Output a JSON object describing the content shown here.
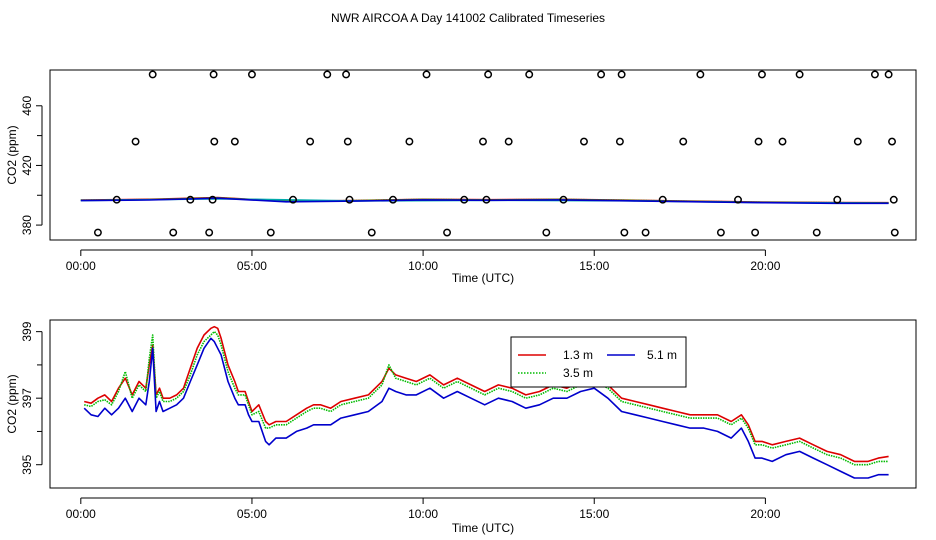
{
  "page": {
    "title": "NWR AIRCOA A  Day 141002  Calibrated Timeseries"
  },
  "colors": {
    "axis": "#000000",
    "red": "#dd0000",
    "green": "#00bb00",
    "blue": "#0000cc",
    "cyan": "#00aaaa"
  },
  "chart_data": [
    {
      "type": "scatter",
      "title": "",
      "xlabel": "Time (UTC)",
      "ylabel": "CO2 (ppm)",
      "xlim": [
        -0.9,
        24.4
      ],
      "ylim": [
        370,
        484
      ],
      "x_ticks": [
        0,
        5,
        10,
        15,
        20
      ],
      "x_tick_labels": [
        "00:00",
        "05:00",
        "10:00",
        "15:00",
        "20:00"
      ],
      "y_ticks": [
        380,
        420,
        460
      ],
      "y_tick_labels": [
        "380",
        "420",
        "460"
      ],
      "grid": false,
      "series": [
        {
          "color": "red",
          "x": [
            0.0,
            2.0,
            4.0,
            6.0,
            8.0,
            10.0,
            12.0,
            14.0,
            16.0,
            18.0,
            20.0,
            22.0,
            23.6
          ],
          "y": [
            396.8,
            397.3,
            398.5,
            396.0,
            396.5,
            397.3,
            397.0,
            397.3,
            396.7,
            396.0,
            395.4,
            395.1,
            395.0
          ]
        },
        {
          "color": "green",
          "x": [
            0.0,
            2.0,
            4.0,
            6.0,
            8.0,
            10.0,
            12.0,
            14.0,
            16.0,
            18.0,
            20.0,
            22.0,
            23.6
          ],
          "y": [
            396.7,
            397.1,
            398.3,
            395.9,
            396.4,
            397.2,
            396.9,
            397.2,
            396.6,
            395.9,
            395.3,
            395.0,
            394.9
          ]
        },
        {
          "color": "cyan",
          "x": [
            0.0,
            4.0,
            8.0,
            12.0,
            16.0,
            20.0,
            23.6
          ],
          "y": [
            396.4,
            397.6,
            396.2,
            396.6,
            396.3,
            395.1,
            394.7
          ]
        },
        {
          "color": "blue",
          "x": [
            0.0,
            2.0,
            4.0,
            6.0,
            8.0,
            10.0,
            12.0,
            14.0,
            16.0,
            18.0,
            20.0,
            22.0,
            23.6
          ],
          "y": [
            396.4,
            396.8,
            398.0,
            395.6,
            396.1,
            396.9,
            396.6,
            396.9,
            396.3,
            395.6,
            395.0,
            394.6,
            394.6
          ]
        }
      ],
      "markers_x": [
        0.5,
        1.05,
        1.6,
        2.1,
        2.7,
        3.2,
        3.75,
        3.85,
        3.9,
        3.88,
        4.5,
        5.0,
        5.55,
        6.2,
        6.7,
        7.2,
        7.75,
        7.8,
        7.85,
        8.5,
        9.6,
        9.12,
        10.1,
        10.7,
        11.2,
        11.75,
        11.85,
        11.9,
        12.5,
        13.1,
        13.6,
        14.1,
        14.7,
        15.2,
        15.75,
        15.8,
        15.88,
        16.5,
        17.0,
        17.6,
        18.1,
        18.7,
        19.2,
        19.7,
        19.8,
        19.9,
        20.5,
        21.0,
        21.5,
        22.1,
        22.7,
        23.2,
        23.6,
        23.7,
        23.75,
        23.78
      ],
      "markers_y": [
        375,
        397,
        436,
        481,
        375,
        397,
        375,
        397,
        436,
        481,
        436,
        481,
        375,
        397,
        436,
        481,
        481,
        436,
        397,
        375,
        436,
        397,
        481,
        375,
        397,
        436,
        397,
        481,
        436,
        481,
        375,
        397,
        436,
        481,
        436,
        481,
        375,
        375,
        397,
        436,
        481,
        375,
        397,
        375,
        436,
        481,
        436,
        481,
        375,
        397,
        436,
        481,
        481,
        436,
        397,
        375
      ]
    },
    {
      "type": "line",
      "title": "",
      "xlabel": "Time (UTC)",
      "ylabel": "CO2 (ppm)",
      "xlim": [
        -0.9,
        24.4
      ],
      "ylim": [
        394.3,
        399.35
      ],
      "x_ticks": [
        0,
        5,
        10,
        15,
        20
      ],
      "x_tick_labels": [
        "00:00",
        "05:00",
        "10:00",
        "15:00",
        "20:00"
      ],
      "y_ticks": [
        395,
        397,
        399
      ],
      "y_tick_labels": [
        "395",
        "397",
        "399"
      ],
      "grid": false,
      "legend_position": "top-center",
      "series": [
        {
          "name": "1.3 m",
          "color": "red",
          "x": [
            0.1,
            0.3,
            0.5,
            0.7,
            0.9,
            1.1,
            1.3,
            1.5,
            1.7,
            1.9,
            2.0,
            2.1,
            2.2,
            2.3,
            2.4,
            2.6,
            2.8,
            3.0,
            3.2,
            3.4,
            3.6,
            3.8,
            3.9,
            4.0,
            4.1,
            4.3,
            4.5,
            4.6,
            4.8,
            4.9,
            5.0,
            5.2,
            5.4,
            5.5,
            5.7,
            6.0,
            6.3,
            6.6,
            6.8,
            7.0,
            7.3,
            7.6,
            8.0,
            8.4,
            8.8,
            9.0,
            9.2,
            9.5,
            9.8,
            10.2,
            10.6,
            11.0,
            11.4,
            11.8,
            12.2,
            12.6,
            13.0,
            13.4,
            13.8,
            14.2,
            14.6,
            15.0,
            15.4,
            15.8,
            16.2,
            16.6,
            17.0,
            17.4,
            17.8,
            18.2,
            18.6,
            19.0,
            19.3,
            19.5,
            19.7,
            19.9,
            20.2,
            20.6,
            21.0,
            21.4,
            21.8,
            22.2,
            22.6,
            23.0,
            23.3,
            23.6
          ],
          "y": [
            396.9,
            396.85,
            397.0,
            397.1,
            396.9,
            397.3,
            397.6,
            397.1,
            397.5,
            397.3,
            398.0,
            398.6,
            397.1,
            397.3,
            397.0,
            397.0,
            397.1,
            397.3,
            397.9,
            398.5,
            398.9,
            399.1,
            399.15,
            399.1,
            398.8,
            398.0,
            397.5,
            397.2,
            397.2,
            396.9,
            396.6,
            396.8,
            396.3,
            396.2,
            396.3,
            396.3,
            396.5,
            396.7,
            396.8,
            396.8,
            396.7,
            396.9,
            397.0,
            397.1,
            397.5,
            397.9,
            397.7,
            397.6,
            397.5,
            397.7,
            397.4,
            397.6,
            397.4,
            397.2,
            397.4,
            397.3,
            397.1,
            397.2,
            397.4,
            397.3,
            397.5,
            397.6,
            397.4,
            397.0,
            396.9,
            396.8,
            396.7,
            396.6,
            396.5,
            396.5,
            396.5,
            396.3,
            396.5,
            396.2,
            395.7,
            395.7,
            395.6,
            395.7,
            395.8,
            395.6,
            395.4,
            395.3,
            395.1,
            395.1,
            395.2,
            395.25
          ]
        },
        {
          "name": "3.5 m",
          "color": "green",
          "x": [
            0.1,
            0.3,
            0.5,
            0.7,
            0.9,
            1.1,
            1.3,
            1.5,
            1.7,
            1.9,
            2.0,
            2.1,
            2.2,
            2.3,
            2.4,
            2.6,
            2.8,
            3.0,
            3.2,
            3.4,
            3.6,
            3.8,
            3.9,
            4.0,
            4.1,
            4.3,
            4.5,
            4.6,
            4.8,
            4.9,
            5.0,
            5.2,
            5.4,
            5.5,
            5.7,
            6.0,
            6.3,
            6.6,
            6.8,
            7.0,
            7.3,
            7.6,
            8.0,
            8.4,
            8.8,
            9.0,
            9.2,
            9.5,
            9.8,
            10.2,
            10.6,
            11.0,
            11.4,
            11.8,
            12.2,
            12.6,
            13.0,
            13.4,
            13.8,
            14.2,
            14.6,
            15.0,
            15.4,
            15.8,
            16.2,
            16.6,
            17.0,
            17.4,
            17.8,
            18.2,
            18.6,
            19.0,
            19.3,
            19.5,
            19.7,
            19.9,
            20.2,
            20.6,
            21.0,
            21.4,
            21.8,
            22.2,
            22.6,
            23.0,
            23.3,
            23.6
          ],
          "y": [
            396.8,
            396.75,
            396.9,
            396.95,
            396.8,
            397.2,
            397.8,
            397.0,
            397.4,
            397.2,
            398.2,
            398.9,
            397.0,
            397.2,
            396.9,
            396.9,
            397.0,
            397.2,
            397.7,
            398.3,
            398.7,
            398.9,
            399.0,
            398.9,
            398.6,
            397.8,
            397.3,
            397.1,
            397.1,
            396.8,
            396.5,
            396.6,
            396.1,
            396.1,
            396.2,
            396.2,
            396.4,
            396.6,
            396.7,
            396.7,
            396.6,
            396.8,
            396.9,
            397.0,
            397.4,
            398.0,
            397.6,
            397.5,
            397.4,
            397.6,
            397.3,
            397.5,
            397.3,
            397.1,
            397.3,
            397.2,
            397.0,
            397.1,
            397.3,
            397.2,
            397.4,
            397.5,
            397.3,
            396.9,
            396.8,
            396.7,
            396.6,
            396.5,
            396.4,
            396.4,
            396.4,
            396.2,
            396.4,
            396.1,
            395.6,
            395.6,
            395.5,
            395.6,
            395.7,
            395.5,
            395.3,
            395.2,
            395.0,
            395.0,
            395.1,
            395.1
          ]
        },
        {
          "name": "5.1 m",
          "color": "blue",
          "x": [
            0.1,
            0.3,
            0.5,
            0.7,
            0.9,
            1.1,
            1.3,
            1.5,
            1.7,
            1.9,
            2.0,
            2.1,
            2.2,
            2.3,
            2.4,
            2.6,
            2.8,
            3.0,
            3.2,
            3.4,
            3.6,
            3.8,
            3.9,
            4.0,
            4.1,
            4.3,
            4.5,
            4.6,
            4.8,
            4.9,
            5.0,
            5.2,
            5.4,
            5.5,
            5.7,
            6.0,
            6.3,
            6.6,
            6.8,
            7.0,
            7.3,
            7.6,
            8.0,
            8.4,
            8.8,
            9.0,
            9.2,
            9.5,
            9.8,
            10.2,
            10.6,
            11.0,
            11.4,
            11.8,
            12.2,
            12.6,
            13.0,
            13.4,
            13.8,
            14.2,
            14.6,
            15.0,
            15.4,
            15.8,
            16.2,
            16.6,
            17.0,
            17.4,
            17.8,
            18.2,
            18.6,
            19.0,
            19.3,
            19.5,
            19.7,
            19.9,
            20.2,
            20.6,
            21.0,
            21.4,
            21.8,
            22.2,
            22.6,
            23.0,
            23.3,
            23.6
          ],
          "y": [
            396.7,
            396.5,
            396.45,
            396.7,
            396.5,
            396.7,
            397.0,
            396.6,
            397.0,
            396.8,
            397.5,
            398.5,
            396.6,
            396.9,
            396.6,
            396.7,
            396.8,
            397.0,
            397.5,
            398.0,
            398.5,
            398.8,
            398.7,
            398.5,
            398.3,
            397.5,
            397.0,
            396.8,
            396.8,
            396.5,
            396.3,
            396.3,
            395.7,
            395.6,
            395.8,
            395.8,
            396.0,
            396.1,
            396.2,
            396.2,
            396.2,
            396.4,
            396.5,
            396.6,
            396.9,
            397.3,
            397.2,
            397.1,
            397.1,
            397.3,
            397.0,
            397.2,
            397.0,
            396.8,
            397.0,
            396.9,
            396.7,
            396.8,
            397.0,
            397.0,
            397.2,
            397.3,
            397.0,
            396.6,
            396.5,
            396.4,
            396.3,
            396.2,
            396.1,
            396.1,
            396.0,
            395.8,
            396.1,
            395.7,
            395.2,
            395.2,
            395.1,
            395.3,
            395.4,
            395.2,
            395.0,
            394.8,
            394.6,
            394.6,
            394.7,
            394.7
          ]
        }
      ]
    }
  ]
}
